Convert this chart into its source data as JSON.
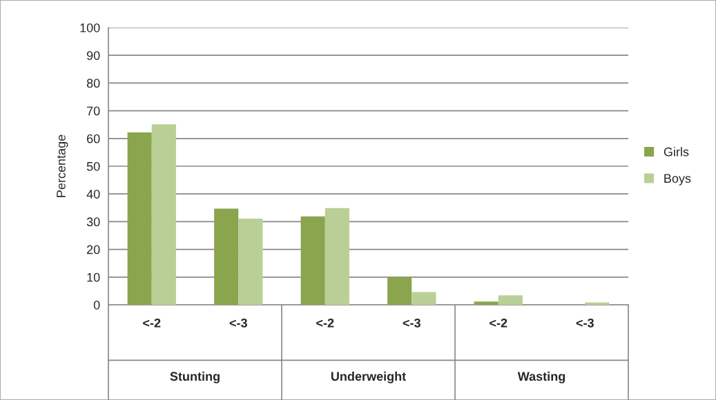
{
  "chart_data": {
    "type": "bar",
    "ylabel": "Percentage",
    "categories": [
      "<-2",
      "<-3",
      "<-2",
      "<-3",
      "<-2",
      "<-3"
    ],
    "series": [
      {
        "name": "Girls",
        "color": "#8aa54e",
        "values": [
          62.2,
          34.7,
          31.9,
          10.0,
          1.2,
          null
        ]
      },
      {
        "name": "Boys",
        "color": "#b9cf96",
        "values": [
          65.1,
          31.1,
          34.9,
          4.6,
          3.4,
          0.9
        ]
      }
    ],
    "ylim": [
      0,
      100
    ],
    "yticks": [
      0,
      10,
      20,
      30,
      40,
      50,
      60,
      70,
      80,
      90,
      100
    ],
    "grid": "y",
    "legend": "right",
    "annotations": [
      "Stunting",
      "Underweight",
      "Wasting"
    ]
  }
}
